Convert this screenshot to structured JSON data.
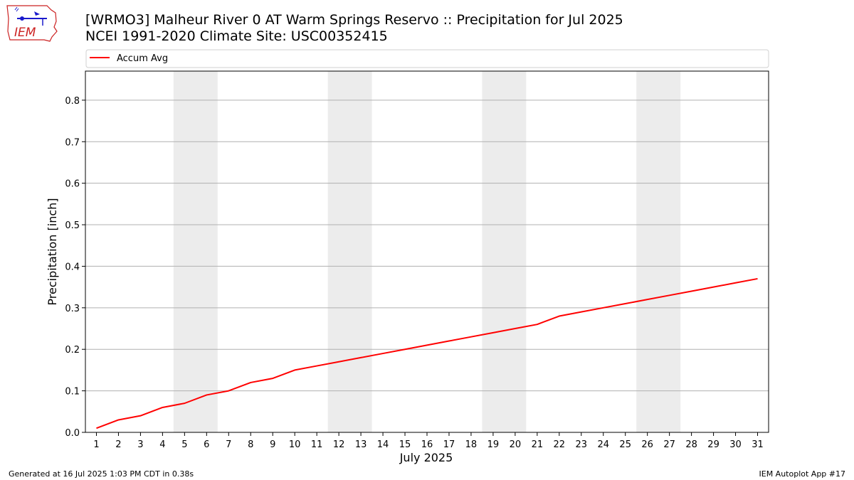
{
  "header": {
    "title_line1": "[WRMO3] Malheur River 0 AT Warm Springs Reservo :: Precipitation for Jul 2025",
    "title_line2": "NCEI 1991-2020 Climate Site: USC00352415",
    "logo_text": "IEM"
  },
  "footer": {
    "generated": "Generated at 16 Jul 2025 1:03 PM CDT in 0.38s",
    "app": "IEM Autoplot App #17"
  },
  "colors": {
    "series": "#ff0000",
    "weekend_shade": "#ececec",
    "grid": "#b0b0b0",
    "logo": "#cc2222",
    "logo_icon": "#1a1acc"
  },
  "chart_data": {
    "type": "line",
    "title": "[WRMO3] Malheur River 0 AT Warm Springs Reservo :: Precipitation for Jul 2025",
    "subtitle": "NCEI 1991-2020 Climate Site: USC00352415",
    "xlabel": "July 2025",
    "ylabel": "Precipitation [inch]",
    "x": [
      1,
      2,
      3,
      4,
      5,
      6,
      7,
      8,
      9,
      10,
      11,
      12,
      13,
      14,
      15,
      16,
      17,
      18,
      19,
      20,
      21,
      22,
      23,
      24,
      25,
      26,
      27,
      28,
      29,
      30,
      31
    ],
    "xlim": [
      0.5,
      31.5
    ],
    "ylim": [
      0,
      0.87
    ],
    "yticks": [
      0.0,
      0.1,
      0.2,
      0.3,
      0.4,
      0.5,
      0.6,
      0.7,
      0.8
    ],
    "ytick_labels": [
      "0.0",
      "0.1",
      "0.2",
      "0.3",
      "0.4",
      "0.5",
      "0.6",
      "0.7",
      "0.8"
    ],
    "grid": "horizontal",
    "legend_position": "top, above plot",
    "weekend_bands": [
      [
        4.5,
        6.5
      ],
      [
        11.5,
        13.5
      ],
      [
        18.5,
        20.5
      ],
      [
        25.5,
        27.5
      ]
    ],
    "series": [
      {
        "name": "Accum Avg",
        "values": [
          0.01,
          0.03,
          0.04,
          0.06,
          0.07,
          0.09,
          0.1,
          0.12,
          0.13,
          0.15,
          0.16,
          0.17,
          0.18,
          0.19,
          0.2,
          0.21,
          0.22,
          0.23,
          0.24,
          0.25,
          0.26,
          0.28,
          0.29,
          0.3,
          0.31,
          0.32,
          0.33,
          0.34,
          0.35,
          0.36,
          0.37
        ]
      }
    ]
  }
}
